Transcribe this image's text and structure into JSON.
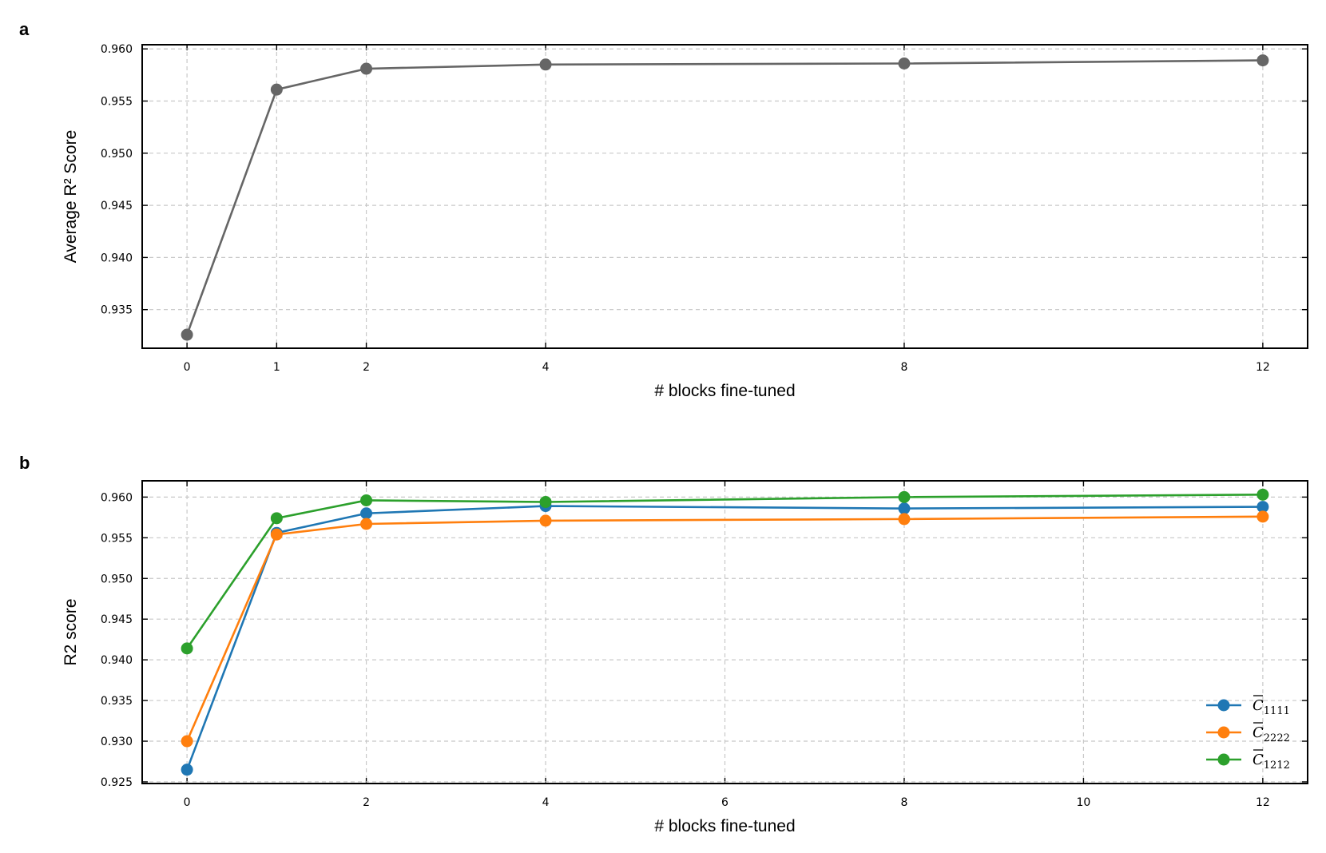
{
  "chart_data": [
    {
      "panel": "a",
      "type": "line",
      "xlabel": "# blocks fine-tuned",
      "ylabel": "Average R² Score",
      "x": [
        0,
        1,
        2,
        4,
        8,
        12
      ],
      "xticks": [
        "0",
        "1",
        "2",
        "4",
        "8",
        "12"
      ],
      "xlim": [
        -0.5,
        12.5
      ],
      "ylim": [
        0.9313,
        0.9604
      ],
      "yticks": [
        "0.935",
        "0.940",
        "0.945",
        "0.950",
        "0.955",
        "0.960"
      ],
      "grid": true,
      "series": [
        {
          "color": "#666666",
          "values": [
            0.9326,
            0.9561,
            0.9581,
            0.9585,
            0.9586,
            0.9589
          ]
        }
      ]
    },
    {
      "panel": "b",
      "type": "line",
      "xlabel": "# blocks fine-tuned",
      "ylabel": "R2 score",
      "x": [
        0,
        1,
        2,
        4,
        8,
        12
      ],
      "xticks": [
        "0",
        "2",
        "4",
        "6",
        "8",
        "10",
        "12"
      ],
      "xlim": [
        -0.5,
        12.5
      ],
      "ylim": [
        0.9248,
        0.962
      ],
      "yticks": [
        "0.925",
        "0.930",
        "0.935",
        "0.940",
        "0.945",
        "0.950",
        "0.955",
        "0.960"
      ],
      "grid": true,
      "legend_position": "lower-right",
      "series": [
        {
          "name": "C",
          "subscript": "1111",
          "color": "#1f77b4",
          "values": [
            0.9265,
            0.9556,
            0.958,
            0.9589,
            0.9586,
            0.9588
          ]
        },
        {
          "name": "C",
          "subscript": "2222",
          "color": "#ff7f0e",
          "values": [
            0.93,
            0.9554,
            0.9567,
            0.9571,
            0.9573,
            0.9576
          ]
        },
        {
          "name": "C",
          "subscript": "1212",
          "color": "#2ca02c",
          "values": [
            0.9414,
            0.9574,
            0.9596,
            0.9594,
            0.96,
            0.9603
          ]
        }
      ]
    }
  ]
}
